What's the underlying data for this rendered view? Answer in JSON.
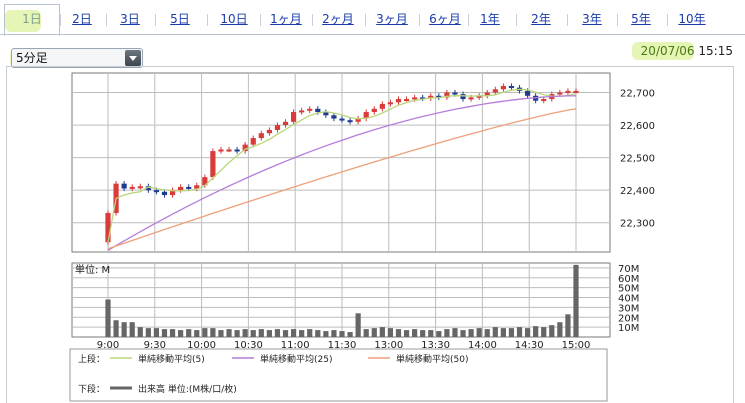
{
  "tabs": {
    "items": [
      "1日",
      "2日",
      "3日",
      "5日",
      "10日",
      "1ヶ月",
      "2ヶ月",
      "3ヶ月",
      "6ヶ月",
      "1年",
      "2年",
      "3年",
      "5年",
      "10年"
    ],
    "active": "1日"
  },
  "interval_select": {
    "selected": "5分足"
  },
  "timestamp": {
    "date": "20/07/06",
    "time": "15:15"
  },
  "colors": {
    "bull": "#d93a3a",
    "bear": "#1f3a93",
    "ma5": "#b9d67a",
    "ma25": "#b57ddb",
    "ma50": "#ee9f7c",
    "volume": "#666666",
    "grid": "#bdbdbd",
    "highlight": "#cdec78"
  },
  "chart_data": [
    {
      "type": "candlestick",
      "x_ticks": [
        "9:00",
        "9:30",
        "10:00",
        "10:30",
        "11:00",
        "11:30",
        "13:00",
        "13:30",
        "14:00",
        "14:30",
        "15:00"
      ],
      "ylim": [
        22210,
        22760
      ],
      "y_ticks": [
        "22,700",
        "22,600",
        "22,500",
        "22,400",
        "22,300"
      ],
      "y_tick_values": [
        22700,
        22600,
        22500,
        22400,
        22300
      ],
      "morning_closes": [
        22330,
        22420,
        22405,
        22410,
        22412,
        22400,
        22395,
        22385,
        22400,
        22410,
        22405,
        22415,
        22440,
        22520,
        22525,
        22525,
        22520,
        22540,
        22560,
        22575,
        22585,
        22600,
        22610,
        22640,
        22645,
        22650,
        22640,
        22630,
        22620,
        22615,
        22610
      ],
      "afternoon_closes": [
        22620,
        22640,
        22650,
        22665,
        22670,
        22680,
        22680,
        22685,
        22682,
        22690,
        22685,
        22700,
        22695,
        22680,
        22685,
        22690,
        22700,
        22710,
        22720,
        22715,
        22705,
        22690,
        22675,
        22680,
        22695,
        22700,
        22705,
        22705
      ],
      "ma5_start": 22240,
      "ma25_start": 22215,
      "ma25_end": 22690,
      "ma50_start": 22220,
      "ma50_end": 22650,
      "legend_title": "上段：",
      "legend": [
        "単純移動平均(5)",
        "単純移動平均(25)",
        "単純移動平均(50)"
      ]
    },
    {
      "type": "bar",
      "label": "単位: M",
      "y_ticks": [
        "70M",
        "60M",
        "50M",
        "40M",
        "30M",
        "20M",
        "10M"
      ],
      "y_tick_values": [
        70,
        60,
        50,
        40,
        30,
        20,
        10
      ],
      "ylim": [
        0,
        75
      ],
      "morning_volumes": [
        38,
        17,
        15,
        15,
        10,
        9,
        9,
        8,
        8,
        7,
        8,
        7,
        9,
        9,
        7,
        8,
        7,
        8,
        7,
        8,
        7,
        8,
        7,
        8,
        7,
        8,
        7,
        6,
        7,
        6,
        5
      ],
      "afternoon_volumes": [
        24,
        8,
        9,
        10,
        9,
        8,
        7,
        8,
        7,
        7,
        6,
        8,
        9,
        7,
        8,
        9,
        8,
        10,
        9,
        9,
        10,
        9,
        11,
        10,
        12,
        15,
        23,
        73
      ],
      "legend_title": "下段：",
      "legend": "出来高 単位:(M株/口/枚)"
    }
  ]
}
